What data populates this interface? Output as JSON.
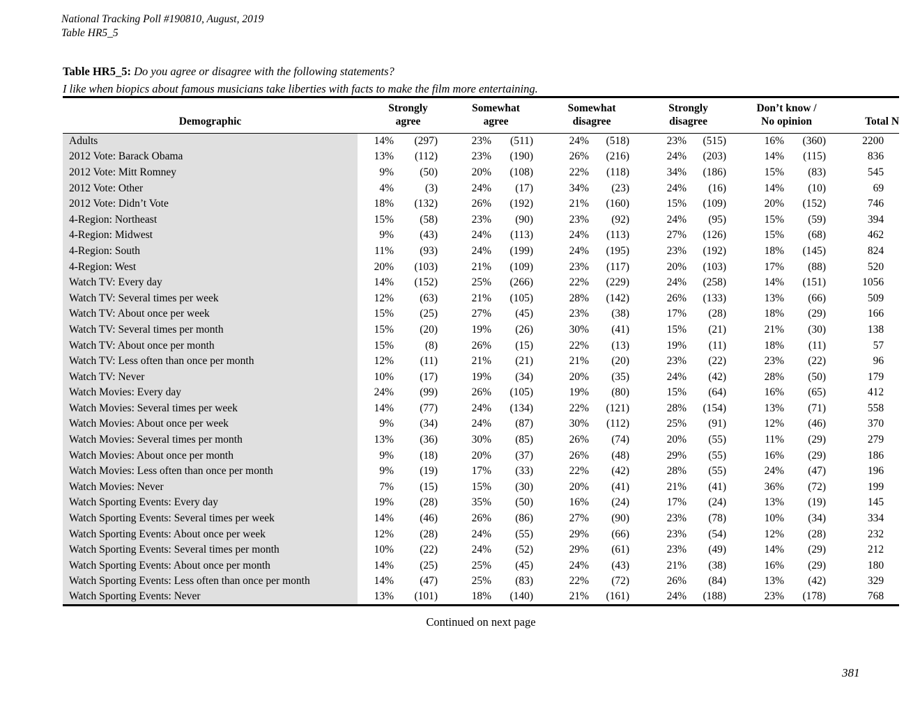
{
  "page": {
    "header_line1": "National Tracking Poll #190810, August, 2019",
    "header_line2": "Table HR5_5",
    "title_label": "Table HR5_5:",
    "title_question": "Do you agree or disagree with the following statements?",
    "title_statement": "I like when biopics about famous musicians take liberties with facts to make the film more entertaining.",
    "continued_note": "Continued on next page",
    "page_number": "381"
  },
  "colors": {
    "demo_column_shade": "#e0e0e0",
    "text": "#000000",
    "rule": "#000000"
  },
  "table": {
    "columns": [
      {
        "line1": "",
        "line2": "Demographic"
      },
      {
        "line1": "",
        "line2": "Strongly agree"
      },
      {
        "line1": "Somewhat",
        "line2": "agree"
      },
      {
        "line1": "Somewhat",
        "line2": "disagree"
      },
      {
        "line1": "Strongly",
        "line2": "disagree"
      },
      {
        "line1": "Don’t know /",
        "line2": "No opinion"
      },
      {
        "line1": "",
        "line2": "Total N"
      }
    ],
    "rows": [
      {
        "label": "Adults",
        "cells": [
          "14%",
          "(297)",
          "23%",
          "(511)",
          "24%",
          "(518)",
          "23%",
          "(515)",
          "16%",
          "(360)"
        ],
        "total": "2200"
      },
      {
        "label": "2012 Vote: Barack Obama",
        "cells": [
          "13%",
          "(112)",
          "23%",
          "(190)",
          "26%",
          "(216)",
          "24%",
          "(203)",
          "14%",
          "(115)"
        ],
        "total": "836"
      },
      {
        "label": "2012 Vote: Mitt Romney",
        "cells": [
          "9%",
          "(50)",
          "20%",
          "(108)",
          "22%",
          "(118)",
          "34%",
          "(186)",
          "15%",
          "(83)"
        ],
        "total": "545"
      },
      {
        "label": "2012 Vote: Other",
        "cells": [
          "4%",
          "(3)",
          "24%",
          "(17)",
          "34%",
          "(23)",
          "24%",
          "(16)",
          "14%",
          "(10)"
        ],
        "total": "69"
      },
      {
        "label": "2012 Vote: Didn’t Vote",
        "cells": [
          "18%",
          "(132)",
          "26%",
          "(192)",
          "21%",
          "(160)",
          "15%",
          "(109)",
          "20%",
          "(152)"
        ],
        "total": "746"
      },
      {
        "label": "4-Region: Northeast",
        "cells": [
          "15%",
          "(58)",
          "23%",
          "(90)",
          "23%",
          "(92)",
          "24%",
          "(95)",
          "15%",
          "(59)"
        ],
        "total": "394"
      },
      {
        "label": "4-Region: Midwest",
        "cells": [
          "9%",
          "(43)",
          "24%",
          "(113)",
          "24%",
          "(113)",
          "27%",
          "(126)",
          "15%",
          "(68)"
        ],
        "total": "462"
      },
      {
        "label": "4-Region: South",
        "cells": [
          "11%",
          "(93)",
          "24%",
          "(199)",
          "24%",
          "(195)",
          "23%",
          "(192)",
          "18%",
          "(145)"
        ],
        "total": "824"
      },
      {
        "label": "4-Region: West",
        "cells": [
          "20%",
          "(103)",
          "21%",
          "(109)",
          "23%",
          "(117)",
          "20%",
          "(103)",
          "17%",
          "(88)"
        ],
        "total": "520"
      },
      {
        "label": "Watch TV: Every day",
        "cells": [
          "14%",
          "(152)",
          "25%",
          "(266)",
          "22%",
          "(229)",
          "24%",
          "(258)",
          "14%",
          "(151)"
        ],
        "total": "1056"
      },
      {
        "label": "Watch TV: Several times per week",
        "cells": [
          "12%",
          "(63)",
          "21%",
          "(105)",
          "28%",
          "(142)",
          "26%",
          "(133)",
          "13%",
          "(66)"
        ],
        "total": "509"
      },
      {
        "label": "Watch TV: About once per week",
        "cells": [
          "15%",
          "(25)",
          "27%",
          "(45)",
          "23%",
          "(38)",
          "17%",
          "(28)",
          "18%",
          "(29)"
        ],
        "total": "166"
      },
      {
        "label": "Watch TV: Several times per month",
        "cells": [
          "15%",
          "(20)",
          "19%",
          "(26)",
          "30%",
          "(41)",
          "15%",
          "(21)",
          "21%",
          "(30)"
        ],
        "total": "138"
      },
      {
        "label": "Watch TV: About once per month",
        "cells": [
          "15%",
          "(8)",
          "26%",
          "(15)",
          "22%",
          "(13)",
          "19%",
          "(11)",
          "18%",
          "(11)"
        ],
        "total": "57"
      },
      {
        "label": "Watch TV: Less often than once per month",
        "cells": [
          "12%",
          "(11)",
          "21%",
          "(21)",
          "21%",
          "(20)",
          "23%",
          "(22)",
          "23%",
          "(22)"
        ],
        "total": "96"
      },
      {
        "label": "Watch TV: Never",
        "cells": [
          "10%",
          "(17)",
          "19%",
          "(34)",
          "20%",
          "(35)",
          "24%",
          "(42)",
          "28%",
          "(50)"
        ],
        "total": "179"
      },
      {
        "label": "Watch Movies: Every day",
        "cells": [
          "24%",
          "(99)",
          "26%",
          "(105)",
          "19%",
          "(80)",
          "15%",
          "(64)",
          "16%",
          "(65)"
        ],
        "total": "412"
      },
      {
        "label": "Watch Movies: Several times per week",
        "cells": [
          "14%",
          "(77)",
          "24%",
          "(134)",
          "22%",
          "(121)",
          "28%",
          "(154)",
          "13%",
          "(71)"
        ],
        "total": "558"
      },
      {
        "label": "Watch Movies: About once per week",
        "cells": [
          "9%",
          "(34)",
          "24%",
          "(87)",
          "30%",
          "(112)",
          "25%",
          "(91)",
          "12%",
          "(46)"
        ],
        "total": "370"
      },
      {
        "label": "Watch Movies: Several times per month",
        "cells": [
          "13%",
          "(36)",
          "30%",
          "(85)",
          "26%",
          "(74)",
          "20%",
          "(55)",
          "11%",
          "(29)"
        ],
        "total": "279"
      },
      {
        "label": "Watch Movies: About once per month",
        "cells": [
          "9%",
          "(18)",
          "20%",
          "(37)",
          "26%",
          "(48)",
          "29%",
          "(55)",
          "16%",
          "(29)"
        ],
        "total": "186"
      },
      {
        "label": "Watch Movies: Less often than once per month",
        "cells": [
          "9%",
          "(19)",
          "17%",
          "(33)",
          "22%",
          "(42)",
          "28%",
          "(55)",
          "24%",
          "(47)"
        ],
        "total": "196"
      },
      {
        "label": "Watch Movies: Never",
        "cells": [
          "7%",
          "(15)",
          "15%",
          "(30)",
          "20%",
          "(41)",
          "21%",
          "(41)",
          "36%",
          "(72)"
        ],
        "total": "199"
      },
      {
        "label": "Watch Sporting Events: Every day",
        "cells": [
          "19%",
          "(28)",
          "35%",
          "(50)",
          "16%",
          "(24)",
          "17%",
          "(24)",
          "13%",
          "(19)"
        ],
        "total": "145"
      },
      {
        "label": "Watch Sporting Events: Several times per week",
        "cells": [
          "14%",
          "(46)",
          "26%",
          "(86)",
          "27%",
          "(90)",
          "23%",
          "(78)",
          "10%",
          "(34)"
        ],
        "total": "334"
      },
      {
        "label": "Watch Sporting Events: About once per week",
        "cells": [
          "12%",
          "(28)",
          "24%",
          "(55)",
          "29%",
          "(66)",
          "23%",
          "(54)",
          "12%",
          "(28)"
        ],
        "total": "232"
      },
      {
        "label": "Watch Sporting Events: Several times per month",
        "cells": [
          "10%",
          "(22)",
          "24%",
          "(52)",
          "29%",
          "(61)",
          "23%",
          "(49)",
          "14%",
          "(29)"
        ],
        "total": "212"
      },
      {
        "label": "Watch Sporting Events: About once per month",
        "cells": [
          "14%",
          "(25)",
          "25%",
          "(45)",
          "24%",
          "(43)",
          "21%",
          "(38)",
          "16%",
          "(29)"
        ],
        "total": "180"
      },
      {
        "label": "Watch Sporting Events: Less often than once per month",
        "cells": [
          "14%",
          "(47)",
          "25%",
          "(83)",
          "22%",
          "(72)",
          "26%",
          "(84)",
          "13%",
          "(42)"
        ],
        "total": "329"
      },
      {
        "label": "Watch Sporting Events: Never",
        "cells": [
          "13%",
          "(101)",
          "18%",
          "(140)",
          "21%",
          "(161)",
          "24%",
          "(188)",
          "23%",
          "(178)"
        ],
        "total": "768"
      }
    ]
  }
}
